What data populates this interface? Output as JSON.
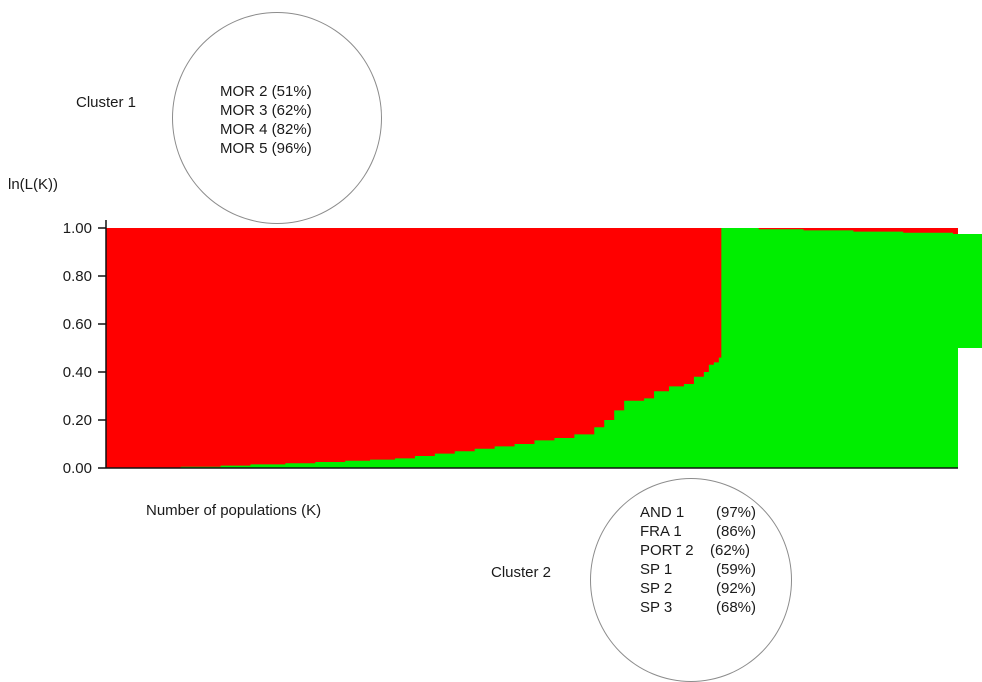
{
  "chart_data": {
    "type": "area",
    "stacked": true,
    "ylabel": "ln(L(K))",
    "xlabel": "Number of populations (K)",
    "ylim": [
      0,
      1
    ],
    "yticks": [
      "0.00",
      "0.20",
      "0.40",
      "0.60",
      "0.80",
      "1.00"
    ],
    "n_individuals": 171,
    "colors": {
      "cluster_1": "#ff0000",
      "cluster_2": "#00ee00"
    },
    "cluster2_profile": [
      [
        0,
        0.0
      ],
      [
        14,
        0.0
      ],
      [
        15,
        0.005
      ],
      [
        22,
        0.005
      ],
      [
        23,
        0.01
      ],
      [
        28,
        0.01
      ],
      [
        29,
        0.015
      ],
      [
        35,
        0.015
      ],
      [
        36,
        0.02
      ],
      [
        42,
        0.025
      ],
      [
        48,
        0.03
      ],
      [
        53,
        0.035
      ],
      [
        58,
        0.04
      ],
      [
        62,
        0.05
      ],
      [
        66,
        0.06
      ],
      [
        70,
        0.07
      ],
      [
        74,
        0.08
      ],
      [
        78,
        0.09
      ],
      [
        82,
        0.1
      ],
      [
        86,
        0.115
      ],
      [
        90,
        0.125
      ],
      [
        94,
        0.14
      ],
      [
        98,
        0.17
      ],
      [
        100,
        0.2
      ],
      [
        102,
        0.24
      ],
      [
        104,
        0.28
      ],
      [
        108,
        0.29
      ],
      [
        110,
        0.32
      ],
      [
        113,
        0.34
      ],
      [
        116,
        0.35
      ],
      [
        118,
        0.38
      ],
      [
        120,
        0.4
      ],
      [
        121,
        0.43
      ],
      [
        122,
        0.44
      ],
      [
        123,
        0.46
      ],
      [
        123.5,
        1.0
      ],
      [
        130,
        1.0
      ],
      [
        131,
        0.995
      ],
      [
        140,
        0.99
      ],
      [
        150,
        0.985
      ],
      [
        160,
        0.98
      ],
      [
        170,
        0.975
      ],
      [
        180,
        0.965
      ],
      [
        190,
        0.955
      ],
      [
        200,
        0.94
      ],
      [
        210,
        0.92
      ],
      [
        220,
        0.9
      ],
      [
        230,
        0.88
      ],
      [
        240,
        0.85
      ],
      [
        250,
        0.82
      ],
      [
        255,
        0.78
      ],
      [
        259,
        0.73
      ],
      [
        262,
        0.68
      ],
      [
        264,
        0.63
      ],
      [
        266,
        0.61
      ],
      [
        270,
        0.6
      ],
      [
        273,
        0.58
      ],
      [
        277,
        0.55
      ],
      [
        281,
        0.52
      ],
      [
        283,
        0.5
      ]
    ],
    "annotations": {
      "cluster_1": {
        "label": "Cluster 1",
        "items": [
          "MOR 2 (51%)",
          "MOR 3 (62%)",
          "MOR 4 (82%)",
          "MOR 5 (96%)"
        ]
      },
      "cluster_2": {
        "label": "Cluster 2",
        "items": [
          {
            "pop": "AND 1",
            "pct": "(97%)"
          },
          {
            "pop": "FRA 1",
            "pct": "(86%)"
          },
          {
            "pop": "PORT 2",
            "pct": "(62%)"
          },
          {
            "pop": "SP 1",
            "pct": "(59%)"
          },
          {
            "pop": "SP 2",
            "pct": "(92%)"
          },
          {
            "pop": "SP 3",
            "pct": "(68%)"
          }
        ]
      }
    }
  }
}
